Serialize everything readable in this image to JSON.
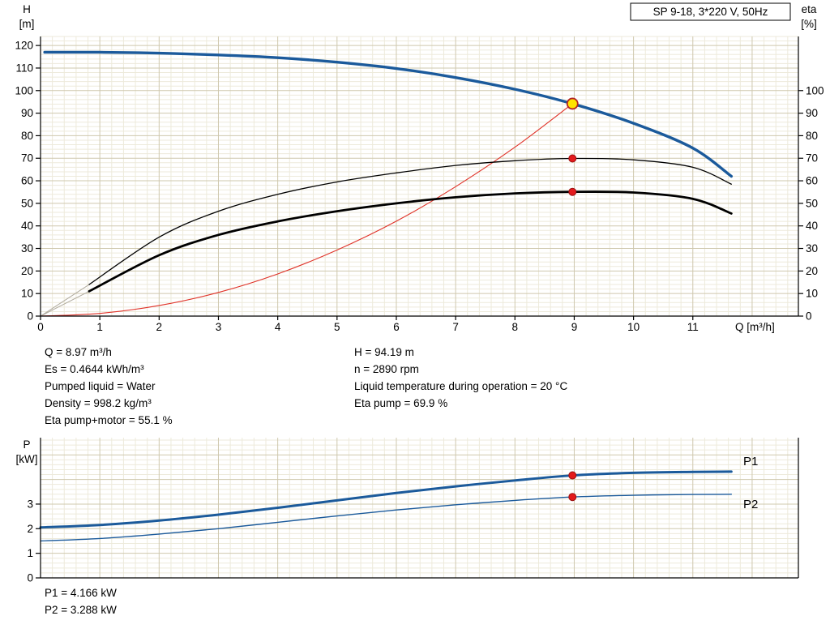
{
  "palette": {
    "curve_blue": "#1B5A9B",
    "curve_black": "#000000",
    "curve_red": "#E03228",
    "marker_red": "#E31A1C",
    "marker_yellow": "#FFE400",
    "grid_major": "#CFC8AE",
    "grid_minor": "#EDEADB",
    "axis": "#000000",
    "extrapolation_gray": "#B0AB9E"
  },
  "chart_data": [
    {
      "type": "line",
      "title": "SP 9-18, 3*220 V, 50Hz",
      "x": {
        "label": "Q [m³/h]",
        "min": 0,
        "max": 12.78,
        "ticks": [
          0,
          1,
          2,
          3,
          4,
          5,
          6,
          7,
          8,
          9,
          10,
          11
        ]
      },
      "y_left": {
        "label": [
          "H",
          "[m]"
        ],
        "min": 0,
        "max": 124,
        "ticks": [
          0,
          10,
          20,
          30,
          40,
          50,
          60,
          70,
          80,
          90,
          100,
          110,
          120
        ]
      },
      "y_right": {
        "label": [
          "eta",
          "[%]"
        ],
        "ticks": [
          0,
          10,
          20,
          30,
          40,
          50,
          60,
          70,
          80,
          90,
          100
        ]
      },
      "series": [
        {
          "name": "eta-pump-extrapolation",
          "color": "#B0AB9E",
          "width": 1,
          "smooth": false,
          "points": [
            [
              0,
              0
            ],
            [
              0.82,
              14
            ]
          ]
        },
        {
          "name": "eta-pump-motor-extrapolation",
          "color": "#B0AB9E",
          "width": 1,
          "smooth": false,
          "points": [
            [
              0,
              0
            ],
            [
              0.82,
              11
            ]
          ]
        },
        {
          "name": "system-curve",
          "color": "#E03228",
          "width": 1.1,
          "points": [
            [
              0,
              0
            ],
            [
              1,
              1.2
            ],
            [
              2,
              4.7
            ],
            [
              3,
              10.5
            ],
            [
              4,
              18.7
            ],
            [
              5,
              29.3
            ],
            [
              6,
              42.1
            ],
            [
              7,
              57.4
            ],
            [
              8,
              74.9
            ],
            [
              8.97,
              94.19
            ]
          ]
        },
        {
          "name": "head-curve",
          "color": "#1B5A9B",
          "width": 3.4,
          "points": [
            [
              0.07,
              117
            ],
            [
              1,
              117
            ],
            [
              2,
              116.6
            ],
            [
              3,
              115.8
            ],
            [
              4,
              114.6
            ],
            [
              5,
              112.6
            ],
            [
              6,
              109.8
            ],
            [
              7,
              105.8
            ],
            [
              8,
              100.6
            ],
            [
              8.97,
              94.19
            ],
            [
              10,
              85.5
            ],
            [
              11,
              74.5
            ],
            [
              11.65,
              62
            ]
          ]
        },
        {
          "name": "eta-pump-curve",
          "color": "#000000",
          "width": 1.3,
          "points": [
            [
              0.82,
              14
            ],
            [
              2,
              35
            ],
            [
              3,
              46.5
            ],
            [
              4,
              54
            ],
            [
              5,
              59.5
            ],
            [
              6,
              63.5
            ],
            [
              7,
              66.8
            ],
            [
              8,
              68.9
            ],
            [
              8.97,
              69.9
            ],
            [
              10,
              69.3
            ],
            [
              11,
              66
            ],
            [
              11.65,
              58.5
            ]
          ]
        },
        {
          "name": "eta-pump-motor-curve",
          "color": "#000000",
          "width": 2.8,
          "points": [
            [
              0.82,
              11
            ],
            [
              2,
              27
            ],
            [
              3,
              36
            ],
            [
              4,
              42
            ],
            [
              5,
              46.5
            ],
            [
              6,
              50
            ],
            [
              7,
              52.7
            ],
            [
              8,
              54.4
            ],
            [
              8.97,
              55.1
            ],
            [
              10,
              54.8
            ],
            [
              11,
              52
            ],
            [
              11.65,
              45.5
            ]
          ]
        }
      ],
      "markers": [
        {
          "name": "duty-point-marker",
          "x": 8.97,
          "y": 94.19,
          "r": 6.5,
          "fill": "#FFE400",
          "stroke": "#B22222",
          "sw": 1.8,
          "interactable": true
        },
        {
          "name": "eta-pump-point-marker",
          "x": 8.97,
          "y": 69.9,
          "r": 4.5,
          "fill": "#E31A1C",
          "stroke": "#991111",
          "sw": 1
        },
        {
          "name": "eta-pump-motor-point-marker",
          "x": 8.97,
          "y": 55.1,
          "r": 4.5,
          "fill": "#E31A1C",
          "stroke": "#991111",
          "sw": 1
        }
      ]
    },
    {
      "type": "line",
      "x": {
        "min": 0,
        "max": 12.78,
        "ticks": []
      },
      "y_left": {
        "label": [
          "P",
          "[kW]"
        ],
        "min": 0,
        "max": 5.7,
        "ticks": [
          0,
          1,
          2,
          3
        ]
      },
      "series": [
        {
          "name": "p2-curve",
          "color": "#1B5A9B",
          "width": 1.4,
          "points": [
            [
              0,
              1.5
            ],
            [
              1,
              1.6
            ],
            [
              2,
              1.78
            ],
            [
              3,
              2.0
            ],
            [
              4,
              2.26
            ],
            [
              5,
              2.52
            ],
            [
              6,
              2.76
            ],
            [
              7,
              2.97
            ],
            [
              8,
              3.15
            ],
            [
              8.97,
              3.288
            ],
            [
              10,
              3.36
            ],
            [
              11,
              3.39
            ],
            [
              11.65,
              3.4
            ]
          ]
        },
        {
          "name": "p1-curve",
          "color": "#1B5A9B",
          "width": 3,
          "points": [
            [
              0,
              2.05
            ],
            [
              1,
              2.15
            ],
            [
              2,
              2.33
            ],
            [
              3,
              2.57
            ],
            [
              4,
              2.85
            ],
            [
              5,
              3.15
            ],
            [
              6,
              3.45
            ],
            [
              7,
              3.72
            ],
            [
              8,
              3.96
            ],
            [
              8.97,
              4.166
            ],
            [
              10,
              4.27
            ],
            [
              11,
              4.31
            ],
            [
              11.65,
              4.32
            ]
          ]
        }
      ],
      "markers": [
        {
          "name": "p1-point-marker",
          "x": 8.97,
          "y": 4.166,
          "r": 4.5,
          "fill": "#E31A1C",
          "stroke": "#991111",
          "sw": 1
        },
        {
          "name": "p2-point-marker",
          "x": 8.97,
          "y": 3.288,
          "r": 4.5,
          "fill": "#E31A1C",
          "stroke": "#991111",
          "sw": 1
        }
      ],
      "curve_labels": [
        {
          "text": "P1",
          "x": 11.85,
          "y": 4.75,
          "color": "#1B5A9B"
        },
        {
          "text": "P2",
          "x": 11.85,
          "y": 3.0,
          "color": "#1B5A9B"
        }
      ]
    }
  ],
  "info": {
    "left": [
      "Q = 8.97 m³/h",
      "Es = 0.4644 kWh/m³",
      "Pumped liquid = Water",
      "Density = 998.2 kg/m³",
      "Eta pump+motor = 55.1 %"
    ],
    "right": [
      "H = 94.19 m",
      "n = 2890 rpm",
      "Liquid temperature during operation = 20 °C",
      "Eta pump = 69.9 %"
    ]
  },
  "power_info": [
    "P1 = 4.166 kW",
    "P2 = 3.288 kW"
  ]
}
